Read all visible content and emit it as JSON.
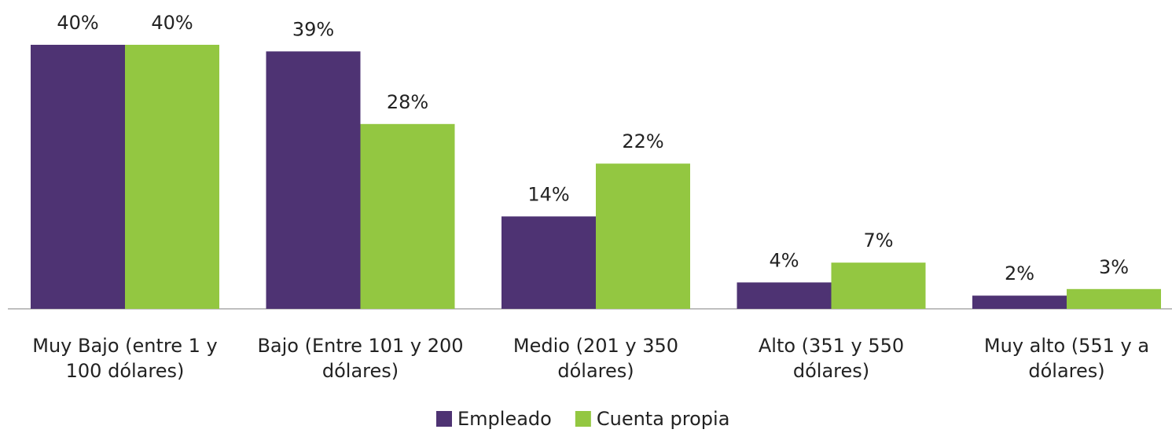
{
  "chart_data": {
    "type": "bar",
    "categories": [
      "Muy Bajo (entre 1 y 100 dólares)",
      "Bajo (Entre 101 y 200 dólares)",
      "Medio (201 y 350 dólares)",
      "Alto (351 y 550 dólares)",
      "Muy alto (551 y a dólares)"
    ],
    "series": [
      {
        "name": "Empleado",
        "color": "#4e3373",
        "values": [
          40,
          39,
          14,
          4,
          2
        ],
        "value_labels": [
          "40%",
          "39%",
          "14%",
          "4%",
          "2%"
        ]
      },
      {
        "name": "Cuenta propia",
        "color": "#93c741",
        "values": [
          40,
          28,
          22,
          7,
          3
        ],
        "value_labels": [
          "40%",
          "28%",
          "22%",
          "7%",
          "3%"
        ]
      }
    ],
    "legend": "bottom"
  }
}
